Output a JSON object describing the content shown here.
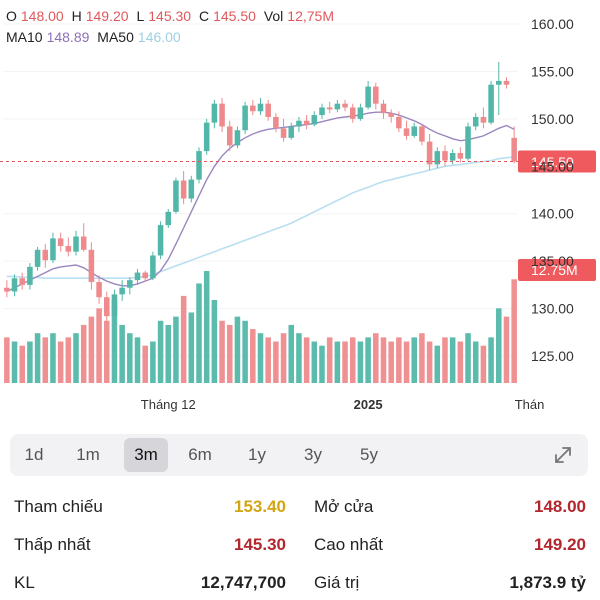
{
  "ohlc": {
    "o_label": "O",
    "o": "148.00",
    "h_label": "H",
    "h": "149.20",
    "l_label": "L",
    "l": "145.30",
    "c_label": "C",
    "c": "145.50",
    "vol_label": "Vol",
    "vol": "12,75M"
  },
  "ma": {
    "ma10_label": "MA10",
    "ma10": "148.89",
    "ma50_label": "MA50",
    "ma50": "146.00"
  },
  "colors": {
    "up": "#52b7a8",
    "down": "#ee8a8c",
    "ma10": "#9a86bf",
    "ma50": "#b9dff0",
    "price_line": "#e0585b"
  },
  "chart_data": {
    "type": "candlestick",
    "y_ticks": [
      "160.00",
      "155.00",
      "150.00",
      "145.00",
      "140.00",
      "135.00",
      "130.00",
      "125.00"
    ],
    "ylim": [
      121,
      162
    ],
    "x_labels": [
      {
        "text": "Tháng 12",
        "index": 21,
        "bold": false
      },
      {
        "text": "2025",
        "index": 47,
        "bold": true
      },
      {
        "text": "Thán",
        "index": 68,
        "bold": false
      }
    ],
    "current_price_label": "145.50",
    "volume_label": "12.75M",
    "candles": [
      [
        132.2,
        133.0,
        131.2,
        131.8
      ],
      [
        131.8,
        133.6,
        131.3,
        133.2
      ],
      [
        133.2,
        133.8,
        132.0,
        132.5
      ],
      [
        132.5,
        134.8,
        132.0,
        134.4
      ],
      [
        134.4,
        136.5,
        134.0,
        136.2
      ],
      [
        136.2,
        136.8,
        134.3,
        135.1
      ],
      [
        135.1,
        138.0,
        134.8,
        137.4
      ],
      [
        137.4,
        138.0,
        136.0,
        136.6
      ],
      [
        136.6,
        137.5,
        135.5,
        136.0
      ],
      [
        136.0,
        138.2,
        135.6,
        137.6
      ],
      [
        137.6,
        139.0,
        136.0,
        136.2
      ],
      [
        136.2,
        137.0,
        132.0,
        132.8
      ],
      [
        132.8,
        133.5,
        130.5,
        131.2
      ],
      [
        131.2,
        131.8,
        128.3,
        129.2
      ],
      [
        129.2,
        132.0,
        125.5,
        131.5
      ],
      [
        131.5,
        133.0,
        130.8,
        132.2
      ],
      [
        132.2,
        133.3,
        131.5,
        133.0
      ],
      [
        133.0,
        134.2,
        132.5,
        133.8
      ],
      [
        133.8,
        134.0,
        132.8,
        133.2
      ],
      [
        133.2,
        136.0,
        133.0,
        135.6
      ],
      [
        135.6,
        139.2,
        135.2,
        138.8
      ],
      [
        138.8,
        140.5,
        138.5,
        140.2
      ],
      [
        140.2,
        143.8,
        140.0,
        143.5
      ],
      [
        143.5,
        144.5,
        141.0,
        141.6
      ],
      [
        141.6,
        144.0,
        141.2,
        143.6
      ],
      [
        143.6,
        147.0,
        143.2,
        146.6
      ],
      [
        146.6,
        150.0,
        146.2,
        149.6
      ],
      [
        149.6,
        152.0,
        149.0,
        151.6
      ],
      [
        151.6,
        152.2,
        148.6,
        149.2
      ],
      [
        149.2,
        149.8,
        146.6,
        147.2
      ],
      [
        147.2,
        149.2,
        146.9,
        148.8
      ],
      [
        148.8,
        151.8,
        148.4,
        151.4
      ],
      [
        151.4,
        152.0,
        150.4,
        150.8
      ],
      [
        150.8,
        152.2,
        150.4,
        151.6
      ],
      [
        151.6,
        152.0,
        149.8,
        150.2
      ],
      [
        150.2,
        150.6,
        148.6,
        149.0
      ],
      [
        149.0,
        150.0,
        147.6,
        148.0
      ],
      [
        148.0,
        149.6,
        147.8,
        149.2
      ],
      [
        149.2,
        150.2,
        148.6,
        149.8
      ],
      [
        149.8,
        150.4,
        148.9,
        149.4
      ],
      [
        149.4,
        150.8,
        149.2,
        150.4
      ],
      [
        150.4,
        151.6,
        150.0,
        151.2
      ],
      [
        151.2,
        151.8,
        150.6,
        151.0
      ],
      [
        151.0,
        152.0,
        150.7,
        151.6
      ],
      [
        151.6,
        152.0,
        150.8,
        151.2
      ],
      [
        151.2,
        151.6,
        149.6,
        150.0
      ],
      [
        150.0,
        151.6,
        149.8,
        151.2
      ],
      [
        151.2,
        154.0,
        151.0,
        153.4
      ],
      [
        153.4,
        153.8,
        151.0,
        151.6
      ],
      [
        151.6,
        152.0,
        150.0,
        150.6
      ],
      [
        150.6,
        151.0,
        149.6,
        150.2
      ],
      [
        150.2,
        150.8,
        148.6,
        149.0
      ],
      [
        149.0,
        149.8,
        147.8,
        148.2
      ],
      [
        148.2,
        149.6,
        148.0,
        149.2
      ],
      [
        149.2,
        149.4,
        147.2,
        147.6
      ],
      [
        147.6,
        148.4,
        144.6,
        145.2
      ],
      [
        145.2,
        147.0,
        144.8,
        146.6
      ],
      [
        146.6,
        147.2,
        145.0,
        145.6
      ],
      [
        145.6,
        146.8,
        145.2,
        146.4
      ],
      [
        146.4,
        147.0,
        145.4,
        145.8
      ],
      [
        145.8,
        149.6,
        145.6,
        149.2
      ],
      [
        149.2,
        150.6,
        148.8,
        150.2
      ],
      [
        150.2,
        151.2,
        149.0,
        149.6
      ],
      [
        149.6,
        154.0,
        149.4,
        153.6
      ],
      [
        153.6,
        156.0,
        150.4,
        154.0
      ],
      [
        154.0,
        154.4,
        153.2,
        153.6
      ],
      [
        148.0,
        149.2,
        145.3,
        145.5
      ]
    ],
    "volumes": [
      0.55,
      0.5,
      0.45,
      0.5,
      0.6,
      0.55,
      0.6,
      0.5,
      0.55,
      0.6,
      0.7,
      0.8,
      0.9,
      0.75,
      1.0,
      0.7,
      0.6,
      0.55,
      0.45,
      0.5,
      0.75,
      0.7,
      0.8,
      1.05,
      0.85,
      1.2,
      1.35,
      1.0,
      0.75,
      0.7,
      0.8,
      0.75,
      0.65,
      0.6,
      0.55,
      0.5,
      0.6,
      0.7,
      0.6,
      0.55,
      0.5,
      0.45,
      0.55,
      0.5,
      0.5,
      0.55,
      0.5,
      0.55,
      0.6,
      0.55,
      0.5,
      0.55,
      0.5,
      0.55,
      0.6,
      0.5,
      0.45,
      0.55,
      0.55,
      0.5,
      0.6,
      0.5,
      0.45,
      0.55,
      0.9,
      0.8,
      1.25
    ],
    "ma10": [
      131.8,
      132.2,
      132.6,
      133.0,
      133.4,
      133.8,
      134.2,
      134.4,
      134.5,
      134.6,
      134.3,
      133.8,
      133.3,
      132.9,
      132.6,
      132.4,
      132.4,
      132.6,
      132.9,
      133.2,
      134.0,
      135.2,
      136.8,
      138.5,
      140.2,
      141.9,
      143.6,
      145.0,
      146.1,
      146.9,
      147.5,
      148.0,
      148.4,
      148.7,
      148.9,
      149.0,
      149.1,
      149.2,
      149.3,
      149.4,
      149.5,
      149.7,
      149.9,
      150.1,
      150.2,
      150.3,
      150.4,
      150.6,
      150.7,
      150.7,
      150.6,
      150.4,
      150.1,
      149.8,
      149.4,
      148.9,
      148.5,
      148.2,
      147.9,
      147.7,
      147.8,
      148.0,
      148.2,
      148.6,
      149.0,
      149.3,
      148.89
    ],
    "ma50": [
      133.4,
      133.4,
      133.3,
      133.3,
      133.3,
      133.2,
      133.2,
      133.2,
      133.2,
      133.2,
      133.2,
      133.2,
      133.2,
      133.2,
      133.2,
      133.2,
      133.2,
      133.3,
      133.4,
      133.6,
      133.9,
      134.2,
      134.5,
      134.8,
      135.1,
      135.4,
      135.7,
      136.0,
      136.3,
      136.6,
      136.9,
      137.2,
      137.5,
      137.8,
      138.1,
      138.4,
      138.7,
      139.0,
      139.4,
      139.8,
      140.2,
      140.6,
      141.0,
      141.4,
      141.8,
      142.2,
      142.5,
      142.8,
      143.1,
      143.4,
      143.6,
      143.8,
      144.0,
      144.2,
      144.4,
      144.6,
      144.8,
      145.0,
      145.1,
      145.2,
      145.3,
      145.4,
      145.5,
      145.6,
      145.8,
      145.9,
      146.0
    ]
  },
  "tabs": [
    "1d",
    "1m",
    "3m",
    "6m",
    "1y",
    "3y",
    "5y"
  ],
  "active_tab": "3m",
  "stats": {
    "ref_label": "Tham chiếu",
    "ref_value": "153.40",
    "open_label": "Mở cửa",
    "open_value": "148.00",
    "low_label": "Thấp nhất",
    "low_value": "145.30",
    "high_label": "Cao nhất",
    "high_value": "149.20",
    "vol_label": "KL",
    "vol_value": "12,747,700",
    "value_label": "Giá trị",
    "value_value": "1,873.9 tỷ"
  }
}
